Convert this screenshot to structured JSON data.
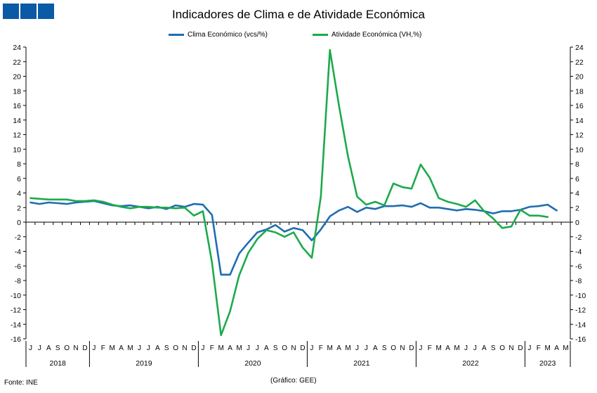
{
  "title": "Indicadores de Clima e de Atividade Económica",
  "source": "Fonte: INE",
  "credit": "(Gráfico: GEE)",
  "logo_icon": "three-blue-squares",
  "chart_data": {
    "type": "line",
    "title": "Indicadores de Clima e de Atividade Económica",
    "ylim": [
      -16,
      24
    ],
    "y_ticks": [
      -16,
      -14,
      -12,
      -10,
      -8,
      -6,
      -4,
      -2,
      0,
      2,
      4,
      6,
      8,
      10,
      12,
      14,
      16,
      18,
      20,
      22,
      24
    ],
    "month_labels": [
      "J",
      "J",
      "A",
      "S",
      "O",
      "N",
      "D",
      "J",
      "F",
      "M",
      "A",
      "M",
      "J",
      "J",
      "A",
      "S",
      "O",
      "N",
      "D",
      "J",
      "F",
      "M",
      "A",
      "M",
      "J",
      "J",
      "A",
      "S",
      "O",
      "N",
      "D",
      "J",
      "F",
      "M",
      "A",
      "M",
      "J",
      "J",
      "A",
      "S",
      "O",
      "N",
      "D",
      "J",
      "F",
      "M",
      "A",
      "M",
      "J",
      "J",
      "A",
      "S",
      "O",
      "N",
      "D",
      "J",
      "F",
      "M",
      "A",
      "M"
    ],
    "years": [
      {
        "label": "2018",
        "start": 0,
        "count": 7
      },
      {
        "label": "2019",
        "start": 7,
        "count": 12
      },
      {
        "label": "2020",
        "start": 19,
        "count": 12
      },
      {
        "label": "2021",
        "start": 31,
        "count": 12
      },
      {
        "label": "2022",
        "start": 43,
        "count": 12
      },
      {
        "label": "2023",
        "start": 55,
        "count": 5
      }
    ],
    "grid": false,
    "legend_position": "top",
    "series": [
      {
        "name": "Clima Económico (vcs/%)",
        "color": "#1f6db3",
        "values": [
          2.7,
          2.5,
          2.7,
          2.6,
          2.5,
          2.7,
          2.8,
          2.9,
          2.6,
          2.3,
          2.2,
          2.3,
          2.1,
          1.9,
          2.1,
          1.8,
          2.3,
          2.1,
          2.5,
          2.4,
          1.0,
          -7.2,
          -7.2,
          -4.3,
          -2.8,
          -1.4,
          -1.0,
          -0.4,
          -1.3,
          -0.8,
          -1.1,
          -2.5,
          -1.0,
          0.8,
          1.6,
          2.1,
          1.4,
          2.0,
          1.8,
          2.2,
          2.2,
          2.3,
          2.1,
          2.6,
          2.0,
          2.0,
          1.8,
          1.6,
          1.8,
          1.7,
          1.5,
          1.2,
          1.5,
          1.5,
          1.7,
          2.1,
          2.2,
          2.4,
          1.6
        ]
      },
      {
        "name": "Atividade Económica (VH,%)",
        "color": "#1daa4b",
        "values": [
          3.3,
          3.2,
          3.1,
          3.1,
          3.1,
          2.9,
          2.9,
          3.0,
          2.8,
          2.4,
          2.1,
          1.9,
          2.1,
          2.1,
          2.0,
          2.0,
          1.9,
          2.0,
          0.9,
          1.5,
          -5.5,
          -15.5,
          -12.2,
          -7.3,
          -4.2,
          -2.3,
          -1.1,
          -1.4,
          -2.0,
          -1.4,
          -3.5,
          -4.9,
          3.5,
          23.6,
          16.0,
          9.0,
          3.5,
          2.4,
          2.8,
          2.3,
          5.3,
          4.8,
          4.6,
          7.9,
          6.1,
          3.3,
          2.8,
          2.5,
          2.1,
          3.0,
          1.5,
          0.5,
          -0.8,
          -0.6,
          1.7,
          0.9,
          0.9,
          0.7
        ]
      }
    ]
  }
}
